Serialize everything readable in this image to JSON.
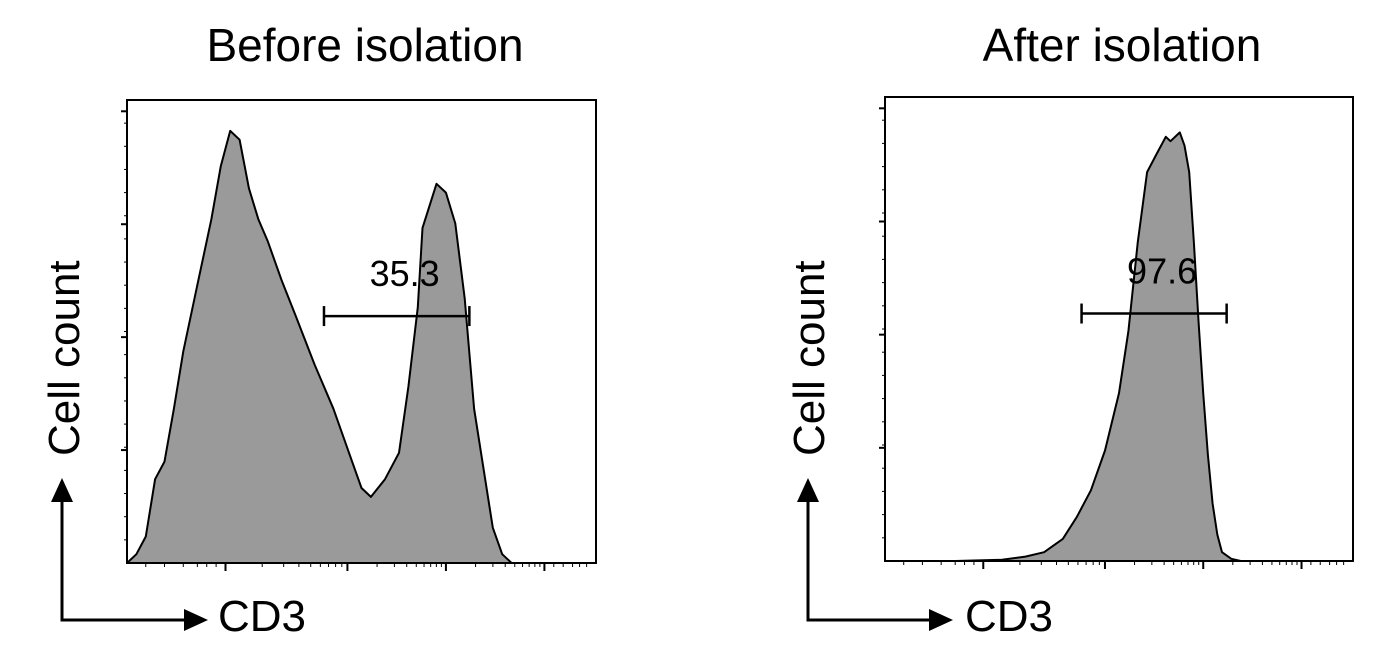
{
  "chart_data": [
    {
      "type": "area",
      "title": "Before isolation",
      "xlabel": "CD3",
      "ylabel": "Cell count",
      "x_scale": "log",
      "x": [
        0,
        0.02,
        0.04,
        0.06,
        0.08,
        0.1,
        0.12,
        0.15,
        0.18,
        0.2,
        0.22,
        0.24,
        0.26,
        0.28,
        0.3,
        0.33,
        0.36,
        0.4,
        0.44,
        0.48,
        0.5,
        0.52,
        0.55,
        0.58,
        0.6,
        0.62,
        0.63,
        0.66,
        0.68,
        0.7,
        0.72,
        0.74,
        0.78,
        0.8,
        0.82,
        0.84,
        0.86,
        0.88,
        0.9,
        1
      ],
      "values": [
        0,
        0.02,
        0.06,
        0.19,
        0.23,
        0.35,
        0.48,
        0.63,
        0.78,
        0.9,
        0.98,
        0.96,
        0.85,
        0.78,
        0.73,
        0.64,
        0.56,
        0.45,
        0.35,
        0.23,
        0.17,
        0.15,
        0.19,
        0.25,
        0.4,
        0.58,
        0.76,
        0.86,
        0.84,
        0.77,
        0.6,
        0.35,
        0.08,
        0.02,
        0,
        0,
        0,
        0,
        0,
        0
      ],
      "ylim": [
        0,
        1.05
      ],
      "gate": {
        "label": "35.3",
        "from": 0.42,
        "to": 0.73,
        "level": 0.56
      },
      "fill": "#9a9a9a",
      "yticks": 4
    },
    {
      "type": "area",
      "title": "After isolation",
      "xlabel": "CD3",
      "ylabel": "Cell count",
      "x_scale": "log",
      "x": [
        0,
        0.08,
        0.15,
        0.25,
        0.3,
        0.34,
        0.38,
        0.41,
        0.44,
        0.47,
        0.5,
        0.52,
        0.54,
        0.56,
        0.58,
        0.6,
        0.61,
        0.63,
        0.64,
        0.65,
        0.66,
        0.67,
        0.68,
        0.69,
        0.7,
        0.71,
        0.72,
        0.74,
        0.76,
        0.8,
        0.9,
        1
      ],
      "values": [
        0,
        0,
        0,
        0.003,
        0.01,
        0.02,
        0.05,
        0.1,
        0.16,
        0.25,
        0.38,
        0.52,
        0.72,
        0.88,
        0.92,
        0.96,
        0.95,
        0.97,
        0.94,
        0.88,
        0.72,
        0.54,
        0.38,
        0.24,
        0.13,
        0.06,
        0.02,
        0.005,
        0,
        0,
        0,
        0
      ],
      "ylim": [
        0,
        1.05
      ],
      "gate": {
        "label": "97.6",
        "from": 0.42,
        "to": 0.73,
        "level": 0.56
      },
      "fill": "#9a9a9a",
      "yticks": 4
    }
  ]
}
